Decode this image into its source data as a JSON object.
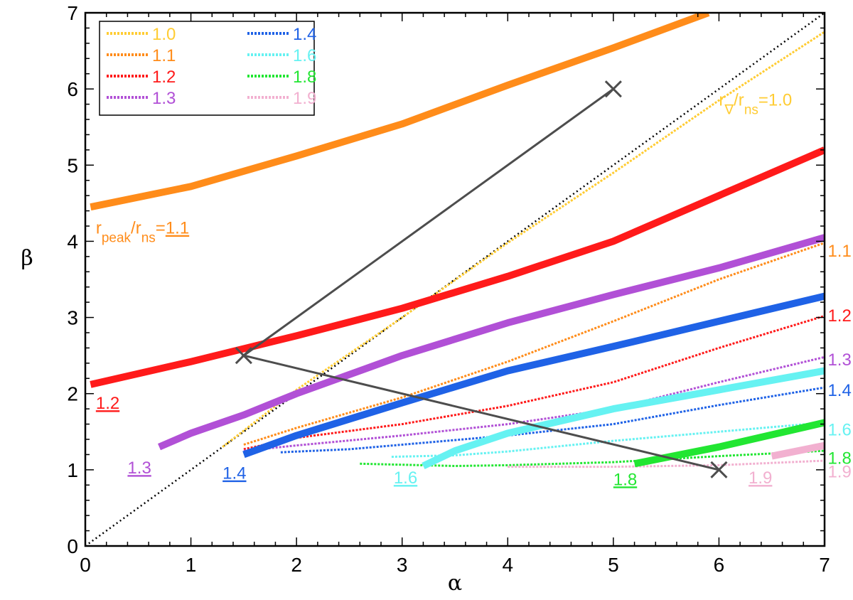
{
  "chart_data": {
    "type": "line",
    "xlabel": "α",
    "ylabel": "β",
    "xlim": [
      0,
      7
    ],
    "ylim": [
      0,
      7
    ],
    "x_ticks": [
      "0",
      "1",
      "2",
      "3",
      "4",
      "5",
      "6",
      "7"
    ],
    "y_ticks": [
      "0",
      "1",
      "2",
      "3",
      "4",
      "5",
      "6",
      "7"
    ],
    "grid": false,
    "legend_placement": "top-left",
    "colors": {
      "1.0": "#ffcc33",
      "1.1": "#ff8c1a",
      "1.2": "#ff1a1a",
      "1.3": "#b150d6",
      "1.4": "#1f62e6",
      "1.6": "#66f2f2",
      "1.8": "#22e632",
      "1.9": "#f2b0d0",
      "diagonal": "#000000",
      "x_path": "#4d4d4d"
    },
    "legend": [
      {
        "name": "1.0",
        "color": "#ffcc33"
      },
      {
        "name": "1.1",
        "color": "#ff8c1a"
      },
      {
        "name": "1.2",
        "color": "#ff1a1a"
      },
      {
        "name": "1.3",
        "color": "#b150d6"
      },
      {
        "name": "1.4",
        "color": "#1f62e6"
      },
      {
        "name": "1.6",
        "color": "#66f2f2"
      },
      {
        "name": "1.8",
        "color": "#22e632"
      },
      {
        "name": "1.9",
        "color": "#f2b0d0"
      }
    ],
    "thick_series": [
      {
        "name": "1.1",
        "color": "#ff8c1a",
        "x": [
          0.05,
          1.0,
          2.0,
          3.0,
          4.0,
          5.0,
          5.9
        ],
        "y": [
          4.45,
          4.72,
          5.12,
          5.54,
          6.05,
          6.54,
          7.0
        ]
      },
      {
        "name": "1.2",
        "color": "#ff1a1a",
        "x": [
          0.05,
          1.0,
          2.0,
          3.0,
          4.0,
          5.0,
          6.0,
          7.0
        ],
        "y": [
          2.12,
          2.42,
          2.76,
          3.12,
          3.54,
          4.0,
          4.6,
          5.2
        ]
      },
      {
        "name": "1.3",
        "color": "#b150d6",
        "x": [
          0.7,
          1.0,
          1.5,
          2.0,
          3.0,
          4.0,
          5.0,
          6.0,
          7.0
        ],
        "y": [
          1.3,
          1.48,
          1.72,
          2.0,
          2.5,
          2.93,
          3.3,
          3.65,
          4.05
        ]
      },
      {
        "name": "1.4",
        "color": "#1f62e6",
        "x": [
          1.5,
          2.0,
          3.0,
          4.0,
          5.0,
          6.0,
          7.0
        ],
        "y": [
          1.2,
          1.45,
          1.88,
          2.3,
          2.62,
          2.95,
          3.28
        ]
      },
      {
        "name": "1.6",
        "color": "#66f2f2",
        "x": [
          3.2,
          3.5,
          4.0,
          5.0,
          6.0,
          7.0
        ],
        "y": [
          1.05,
          1.25,
          1.48,
          1.8,
          2.05,
          2.3
        ]
      },
      {
        "name": "1.8",
        "color": "#22e632",
        "x": [
          5.2,
          6.0,
          7.0
        ],
        "y": [
          1.08,
          1.3,
          1.62
        ]
      },
      {
        "name": "1.9",
        "color": "#f2b0d0",
        "x": [
          6.5,
          7.0
        ],
        "y": [
          1.18,
          1.32
        ]
      }
    ],
    "dashed_series": [
      {
        "name": "1.0",
        "color": "#ffcc33",
        "x": [
          1.3,
          2.0,
          3.0,
          4.0,
          5.0,
          6.0,
          7.0
        ],
        "y": [
          1.3,
          2.05,
          3.0,
          3.98,
          4.9,
          5.85,
          6.75
        ]
      },
      {
        "name": "1.1",
        "color": "#ff8c1a",
        "x": [
          1.5,
          2.0,
          3.0,
          4.0,
          5.0,
          6.0,
          7.0
        ],
        "y": [
          1.33,
          1.55,
          1.95,
          2.42,
          2.95,
          3.5,
          3.98
        ]
      },
      {
        "name": "1.2",
        "color": "#ff1a1a",
        "x": [
          1.5,
          2.0,
          3.0,
          4.0,
          5.0,
          6.0,
          7.0
        ],
        "y": [
          1.27,
          1.42,
          1.6,
          1.84,
          2.15,
          2.6,
          3.02
        ]
      },
      {
        "name": "1.3",
        "color": "#b150d6",
        "x": [
          1.5,
          2.0,
          3.0,
          4.0,
          5.0,
          6.0,
          7.0
        ],
        "y": [
          1.25,
          1.32,
          1.45,
          1.6,
          1.8,
          2.15,
          2.48
        ]
      },
      {
        "name": "1.4",
        "color": "#1f62e6",
        "x": [
          1.85,
          2.5,
          3.0,
          4.0,
          5.0,
          6.0,
          7.0
        ],
        "y": [
          1.23,
          1.27,
          1.33,
          1.45,
          1.6,
          1.85,
          2.08
        ]
      },
      {
        "name": "1.6",
        "color": "#66f2f2",
        "x": [
          2.9,
          3.5,
          4.0,
          5.0,
          6.0,
          7.0
        ],
        "y": [
          1.17,
          1.19,
          1.24,
          1.38,
          1.5,
          1.62
        ]
      },
      {
        "name": "1.8",
        "color": "#22e632",
        "x": [
          2.6,
          3.5,
          4.0,
          5.0,
          6.0,
          7.0
        ],
        "y": [
          1.08,
          1.05,
          1.06,
          1.1,
          1.18,
          1.25
        ]
      },
      {
        "name": "1.9",
        "color": "#f2b0d0",
        "x": [
          4.0,
          5.0,
          6.0,
          7.0
        ],
        "y": [
          1.04,
          1.04,
          1.06,
          1.12
        ]
      }
    ],
    "diagonal": {
      "x": [
        0,
        7
      ],
      "y": [
        0,
        7
      ]
    },
    "x_path": {
      "x": [
        5.0,
        1.5,
        6.0
      ],
      "y": [
        6.0,
        2.5,
        1.0
      ],
      "marker": "X"
    },
    "curve_labels": [
      {
        "text": "1.2",
        "color": "#ff1a1a",
        "underline": true,
        "x": 0.1,
        "y": 1.8
      },
      {
        "text": "1.3",
        "color": "#b150d6",
        "underline": true,
        "x": 0.4,
        "y": 0.95
      },
      {
        "text": "1.4",
        "color": "#1f62e6",
        "underline": true,
        "x": 1.3,
        "y": 0.88
      },
      {
        "text": "1.6",
        "color": "#66f2f2",
        "underline": true,
        "x": 2.92,
        "y": 0.82
      },
      {
        "text": "1.8",
        "color": "#22e632",
        "underline": true,
        "x": 5.0,
        "y": 0.8
      },
      {
        "text": "1.9",
        "color": "#f2b0d0",
        "underline": true,
        "x": 6.28,
        "y": 0.82
      },
      {
        "text": "1.1",
        "color": "#ff8c1a",
        "underline": false,
        "x": 7.03,
        "y": 3.8
      },
      {
        "text": "1.2",
        "color": "#ff1a1a",
        "underline": false,
        "x": 7.03,
        "y": 2.95
      },
      {
        "text": "1.3",
        "color": "#b150d6",
        "underline": false,
        "x": 7.03,
        "y": 2.37
      },
      {
        "text": "1.4",
        "color": "#1f62e6",
        "underline": false,
        "x": 7.03,
        "y": 1.97
      },
      {
        "text": "1.6",
        "color": "#66f2f2",
        "underline": false,
        "x": 7.03,
        "y": 1.45
      },
      {
        "text": "1.8",
        "color": "#22e632",
        "underline": false,
        "x": 7.03,
        "y": 1.08
      },
      {
        "text": "1.9",
        "color": "#f2b0d0",
        "underline": false,
        "x": 7.03,
        "y": 0.9
      }
    ],
    "annotations": [
      {
        "color": "#ff8c1a",
        "x": 0.1,
        "y": 4.1,
        "parts": [
          {
            "t": "r",
            "sub": false
          },
          {
            "t": "peak",
            "sub": true
          },
          {
            "t": "/r",
            "sub": false
          },
          {
            "t": "ns",
            "sub": true
          },
          {
            "t": "=",
            "sub": false
          },
          {
            "t": "1.1",
            "sub": false,
            "underline": true
          }
        ]
      },
      {
        "color": "#ffcc33",
        "x": 6.0,
        "y": 5.78,
        "parts": [
          {
            "t": "r",
            "sub": false
          },
          {
            "t": "∇",
            "sub": true
          },
          {
            "t": "/r",
            "sub": false
          },
          {
            "t": "ns",
            "sub": true
          },
          {
            "t": "=1.0",
            "sub": false
          }
        ]
      }
    ]
  }
}
